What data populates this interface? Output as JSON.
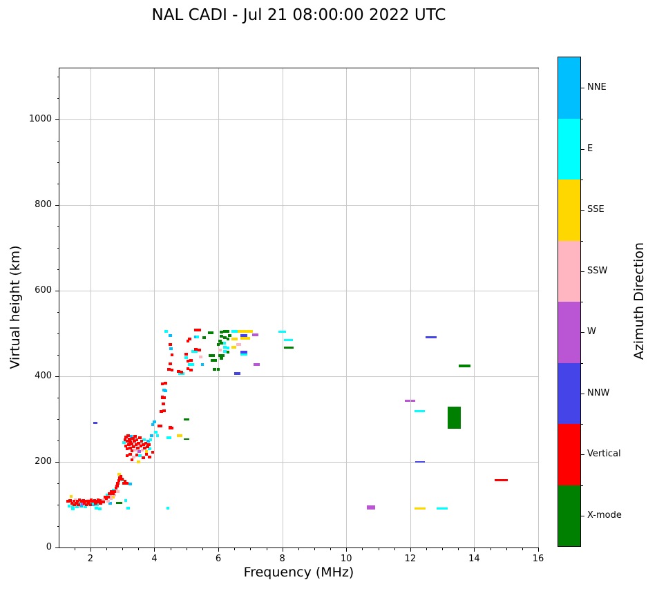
{
  "title": "NAL CADI - Jul 21 08:00:00 2022 UTC",
  "chart_data": {
    "type": "scatter",
    "title": "NAL CADI - Jul 21 08:00:00 2022 UTC",
    "xlabel": "Frequency (MHz)",
    "ylabel": "Virtual height (km)",
    "xlim": [
      1.03,
      16
    ],
    "ylim": [
      0,
      1120
    ],
    "xticks": [
      2,
      4,
      6,
      8,
      10,
      12,
      14,
      16
    ],
    "yticks": [
      0,
      200,
      400,
      600,
      800,
      1000
    ],
    "x_minor_step": 0.5,
    "y_minor_step": 50,
    "grid": true,
    "grid_color": "#c8c8c8",
    "marker_default": {
      "w": 0.1,
      "h": 6.5
    },
    "legend": {
      "title": "Azimuth Direction",
      "position": "right",
      "entries": [
        {
          "key": "NNE",
          "label": "NNE",
          "color": "#00BFFF"
        },
        {
          "key": "E",
          "label": "E",
          "color": "#00FFFF"
        },
        {
          "key": "SSE",
          "label": "SSE",
          "color": "#FFD700"
        },
        {
          "key": "SSW",
          "label": "SSW",
          "color": "#FFB6C1"
        },
        {
          "key": "W",
          "label": "W",
          "color": "#BA55D3"
        },
        {
          "key": "NNW",
          "label": "NNW",
          "color": "#4444E8"
        },
        {
          "key": "V",
          "label": "Vertical",
          "color": "#FF0000"
        },
        {
          "key": "X",
          "label": "X-mode",
          "color": "#008000"
        }
      ]
    },
    "series": [
      {
        "name": "NNE",
        "key": "NNE",
        "points": [
          [
            1.71,
            97
          ],
          [
            2.1,
            100
          ],
          [
            2.62,
            104
          ],
          [
            3.24,
            148
          ],
          [
            3.28,
            260
          ],
          [
            3.8,
            248
          ],
          [
            3.92,
            262
          ],
          [
            3.95,
            288
          ],
          [
            4.0,
            293
          ],
          [
            4.3,
            368
          ],
          [
            4.35,
            367
          ],
          [
            4.5,
            496
          ],
          [
            4.52,
            465
          ],
          [
            5.3,
            492
          ],
          [
            5.5,
            428
          ]
        ]
      },
      {
        "name": "E",
        "key": "E",
        "points": [
          [
            1.33,
            97
          ],
          [
            1.45,
            90
          ],
          [
            1.45,
            95
          ],
          [
            1.58,
            96
          ],
          [
            1.68,
            104
          ],
          [
            1.84,
            96
          ],
          [
            2.05,
            104
          ],
          [
            2.18,
            92
          ],
          [
            2.21,
            100
          ],
          [
            2.3,
            90
          ],
          [
            2.53,
            122
          ],
          [
            2.73,
            134
          ],
          [
            3.01,
            158
          ],
          [
            3.1,
            110
          ],
          [
            3.18,
            92
          ],
          [
            3.55,
            214
          ],
          [
            4.42,
            92
          ],
          [
            3.05,
            245
          ],
          [
            3.68,
            252
          ],
          [
            3.85,
            230
          ],
          [
            3.88,
            252
          ],
          [
            4.05,
            270
          ],
          [
            4.1,
            262
          ],
          [
            4.42,
            257
          ],
          [
            4.48,
            257
          ],
          [
            4.37,
            505
          ],
          [
            4.8,
            406
          ],
          [
            4.9,
            406
          ],
          [
            5.0,
            444
          ],
          [
            5.1,
            428
          ],
          [
            5.2,
            428
          ],
          [
            5.2,
            458
          ],
          [
            5.3,
            458
          ],
          [
            5.35,
            492
          ],
          [
            6.18,
            477
          ],
          [
            6.2,
            468
          ],
          [
            6.3,
            467
          ],
          [
            6.2,
            458
          ],
          [
            6.45,
            505
          ],
          [
            6.55,
            505
          ],
          [
            6.75,
            452
          ],
          [
            6.85,
            452
          ],
          [
            8.0,
            505,
            0.25,
            5
          ],
          [
            8.2,
            485,
            0.28,
            5
          ],
          [
            12.3,
            318,
            0.33,
            5
          ],
          [
            13.0,
            91,
            0.35,
            5
          ]
        ]
      },
      {
        "name": "SSE",
        "key": "SSE",
        "points": [
          [
            1.4,
            119
          ],
          [
            2.7,
            118
          ],
          [
            2.9,
            171
          ],
          [
            3.5,
            200
          ],
          [
            3.75,
            224
          ],
          [
            4.75,
            262
          ],
          [
            4.82,
            262
          ],
          [
            6.45,
            468
          ],
          [
            6.52,
            468
          ],
          [
            6.45,
            488
          ],
          [
            6.55,
            488
          ],
          [
            6.65,
            505
          ],
          [
            6.75,
            505
          ],
          [
            6.85,
            505
          ],
          [
            6.95,
            505
          ],
          [
            7.02,
            505
          ],
          [
            6.75,
            489
          ],
          [
            6.85,
            489
          ],
          [
            6.95,
            489
          ],
          [
            12.3,
            91,
            0.35,
            5
          ]
        ]
      },
      {
        "name": "SSW",
        "key": "SSW",
        "points": [
          [
            1.53,
            112
          ],
          [
            1.92,
            110
          ],
          [
            2.35,
            108
          ],
          [
            2.43,
            112
          ],
          [
            2.55,
            108
          ],
          [
            2.63,
            121
          ],
          [
            2.65,
            115
          ],
          [
            2.75,
            122
          ],
          [
            2.85,
            130
          ],
          [
            3.35,
            212
          ],
          [
            3.4,
            228
          ],
          [
            3.62,
            228
          ],
          [
            3.52,
            240
          ],
          [
            5.45,
            445
          ],
          [
            6.05,
            462
          ],
          [
            6.6,
            474
          ],
          [
            6.67,
            474
          ]
        ]
      },
      {
        "name": "W",
        "key": "W",
        "points": [
          [
            1.76,
            102
          ],
          [
            3.52,
            224
          ],
          [
            7.1,
            497
          ],
          [
            7.2,
            497
          ],
          [
            7.15,
            427
          ],
          [
            7.25,
            427
          ],
          [
            10.78,
            94,
            0.26,
            10
          ],
          [
            11.91,
            343,
            0.17,
            6
          ],
          [
            12.08,
            343,
            0.13,
            6
          ]
        ]
      },
      {
        "name": "NNW",
        "key": "NNW",
        "points": [
          [
            2.15,
            292,
            0.12,
            5
          ],
          [
            6.75,
            496
          ],
          [
            6.85,
            496
          ],
          [
            6.75,
            457
          ],
          [
            6.85,
            457
          ],
          [
            6.55,
            406
          ],
          [
            6.65,
            406
          ],
          [
            12.3,
            200,
            0.3,
            4
          ],
          [
            12.65,
            492,
            0.35,
            5
          ]
        ]
      },
      {
        "name": "Vertical",
        "key": "V",
        "points": [
          [
            1.3,
            108
          ],
          [
            1.36,
            110
          ],
          [
            1.42,
            104
          ],
          [
            1.48,
            108
          ],
          [
            1.5,
            100
          ],
          [
            1.56,
            104
          ],
          [
            1.6,
            108
          ],
          [
            1.63,
            100
          ],
          [
            1.66,
            112
          ],
          [
            1.73,
            108
          ],
          [
            1.78,
            110
          ],
          [
            1.81,
            104
          ],
          [
            1.86,
            108
          ],
          [
            1.89,
            100
          ],
          [
            1.94,
            104
          ],
          [
            1.97,
            108
          ],
          [
            2.0,
            100
          ],
          [
            2.02,
            112
          ],
          [
            2.08,
            108
          ],
          [
            2.13,
            110
          ],
          [
            2.16,
            104
          ],
          [
            2.18,
            108
          ],
          [
            2.24,
            112
          ],
          [
            2.26,
            106
          ],
          [
            2.29,
            110
          ],
          [
            2.32,
            104
          ],
          [
            2.4,
            107
          ],
          [
            2.46,
            118
          ],
          [
            2.5,
            115
          ],
          [
            2.56,
            118
          ],
          [
            2.6,
            126
          ],
          [
            2.66,
            130
          ],
          [
            2.7,
            126
          ],
          [
            2.76,
            130
          ],
          [
            2.8,
            139
          ],
          [
            2.83,
            144
          ],
          [
            2.86,
            150
          ],
          [
            2.89,
            157
          ],
          [
            2.92,
            163
          ],
          [
            2.95,
            166
          ],
          [
            2.98,
            160
          ],
          [
            3.04,
            150
          ],
          [
            3.08,
            155
          ],
          [
            3.14,
            150
          ],
          [
            3.08,
            252
          ],
          [
            3.1,
            238
          ],
          [
            3.12,
            258
          ],
          [
            3.15,
            230
          ],
          [
            3.15,
            248
          ],
          [
            3.18,
            262
          ],
          [
            3.2,
            240
          ],
          [
            3.22,
            254
          ],
          [
            3.25,
            233
          ],
          [
            3.25,
            247
          ],
          [
            3.3,
            226
          ],
          [
            3.3,
            242
          ],
          [
            3.33,
            255
          ],
          [
            3.35,
            236
          ],
          [
            3.38,
            248
          ],
          [
            3.4,
            260
          ],
          [
            3.43,
            240
          ],
          [
            3.45,
            252
          ],
          [
            3.48,
            232
          ],
          [
            3.5,
            244
          ],
          [
            3.55,
            256
          ],
          [
            3.58,
            238
          ],
          [
            3.6,
            248
          ],
          [
            3.65,
            240
          ],
          [
            3.7,
            232
          ],
          [
            3.73,
            244
          ],
          [
            3.78,
            236
          ],
          [
            3.83,
            240
          ],
          [
            3.15,
            214
          ],
          [
            3.25,
            218
          ],
          [
            3.45,
            216
          ],
          [
            3.65,
            210
          ],
          [
            3.75,
            218
          ],
          [
            3.85,
            212
          ],
          [
            3.3,
            205
          ],
          [
            3.95,
            222
          ],
          [
            4.15,
            284
          ],
          [
            4.2,
            284
          ],
          [
            4.22,
            318
          ],
          [
            4.3,
            320
          ],
          [
            4.28,
            335
          ],
          [
            4.25,
            351
          ],
          [
            4.3,
            350
          ],
          [
            4.25,
            383
          ],
          [
            4.35,
            384
          ],
          [
            4.5,
            280
          ],
          [
            4.55,
            279
          ],
          [
            4.5,
            475
          ],
          [
            4.55,
            450
          ],
          [
            4.5,
            430
          ],
          [
            4.45,
            416
          ],
          [
            4.55,
            415
          ],
          [
            4.75,
            412
          ],
          [
            4.85,
            410
          ],
          [
            5.0,
            452
          ],
          [
            5.05,
            482
          ],
          [
            5.1,
            488
          ],
          [
            5.05,
            435
          ],
          [
            5.15,
            438
          ],
          [
            5.05,
            418
          ],
          [
            5.15,
            415
          ],
          [
            5.3,
            508
          ],
          [
            5.4,
            508
          ],
          [
            5.3,
            463
          ],
          [
            5.4,
            462
          ],
          [
            14.85,
            158,
            0.42,
            5
          ]
        ]
      },
      {
        "name": "X-mode",
        "key": "X",
        "points": [
          [
            2.9,
            104,
            0.2,
            4
          ],
          [
            5.0,
            300,
            0.18,
            5
          ],
          [
            5.0,
            253,
            0.18,
            4
          ],
          [
            5.55,
            490
          ],
          [
            5.72,
            502
          ],
          [
            5.8,
            502
          ],
          [
            5.75,
            448
          ],
          [
            5.85,
            448
          ],
          [
            5.8,
            438
          ],
          [
            5.9,
            438
          ],
          [
            5.88,
            417
          ],
          [
            6.0,
            417
          ],
          [
            6.0,
            474
          ],
          [
            6.05,
            482
          ],
          [
            6.05,
            448
          ],
          [
            6.15,
            448
          ],
          [
            6.1,
            443
          ],
          [
            6.1,
            478
          ],
          [
            6.1,
            503
          ],
          [
            6.2,
            505
          ],
          [
            6.3,
            505
          ],
          [
            6.1,
            494
          ],
          [
            6.2,
            490
          ],
          [
            6.3,
            488
          ],
          [
            6.35,
            495
          ],
          [
            6.3,
            457
          ],
          [
            8.2,
            467,
            0.3,
            5
          ],
          [
            13.37,
            303,
            0.4,
            52
          ],
          [
            13.7,
            424,
            0.35,
            6
          ]
        ]
      }
    ]
  }
}
